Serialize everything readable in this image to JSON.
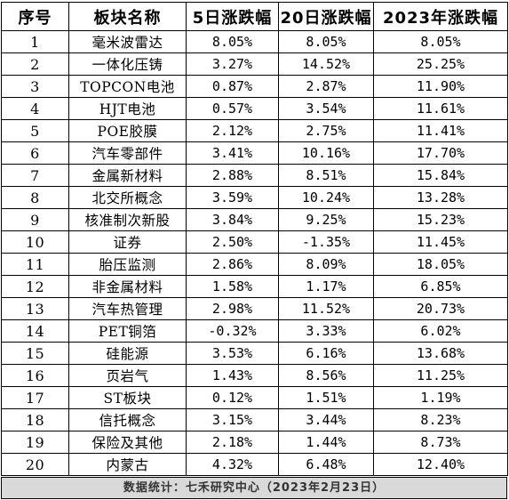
{
  "table": {
    "headers": [
      "序号",
      "板块名称",
      "5日涨跌幅",
      "20日涨跌幅",
      "2023年涨跌幅"
    ],
    "rows": [
      [
        "1",
        "毫米波雷达",
        "8.05%",
        "8.05%",
        "8.05%"
      ],
      [
        "2",
        "一体化压铸",
        "3.27%",
        "14.52%",
        "25.25%"
      ],
      [
        "3",
        "TOPCON电池",
        "0.87%",
        "2.87%",
        "11.90%"
      ],
      [
        "4",
        "HJT电池",
        "0.57%",
        "3.54%",
        "11.61%"
      ],
      [
        "5",
        "POE胶膜",
        "2.12%",
        "2.75%",
        "11.41%"
      ],
      [
        "6",
        "汽车零部件",
        "3.41%",
        "10.16%",
        "17.70%"
      ],
      [
        "7",
        "金属新材料",
        "2.88%",
        "8.51%",
        "15.84%"
      ],
      [
        "8",
        "北交所概念",
        "3.59%",
        "10.24%",
        "13.28%"
      ],
      [
        "9",
        "核准制次新股",
        "3.84%",
        "9.25%",
        "15.23%"
      ],
      [
        "10",
        "证券",
        "2.50%",
        "-1.35%",
        "11.45%"
      ],
      [
        "11",
        "胎压监测",
        "2.86%",
        "8.09%",
        "18.05%"
      ],
      [
        "12",
        "非金属材料",
        "1.58%",
        "1.17%",
        "6.85%"
      ],
      [
        "13",
        "汽车热管理",
        "2.98%",
        "11.52%",
        "20.73%"
      ],
      [
        "14",
        "PET铜箔",
        "-0.32%",
        "3.33%",
        "6.02%"
      ],
      [
        "15",
        "硅能源",
        "3.53%",
        "6.16%",
        "13.68%"
      ],
      [
        "16",
        "页岩气",
        "1.43%",
        "8.56%",
        "11.25%"
      ],
      [
        "17",
        "ST板块",
        "0.12%",
        "1.51%",
        "1.19%"
      ],
      [
        "18",
        "信托概念",
        "3.15%",
        "3.44%",
        "8.23%"
      ],
      [
        "19",
        "保险及其他",
        "2.18%",
        "1.44%",
        "8.73%"
      ],
      [
        "20",
        "内蒙古",
        "4.32%",
        "6.48%",
        "12.40%"
      ]
    ]
  },
  "footer": {
    "text": "数据统计：七禾研究中心（2023年2月23日）",
    "background": "#d9d9d9"
  }
}
